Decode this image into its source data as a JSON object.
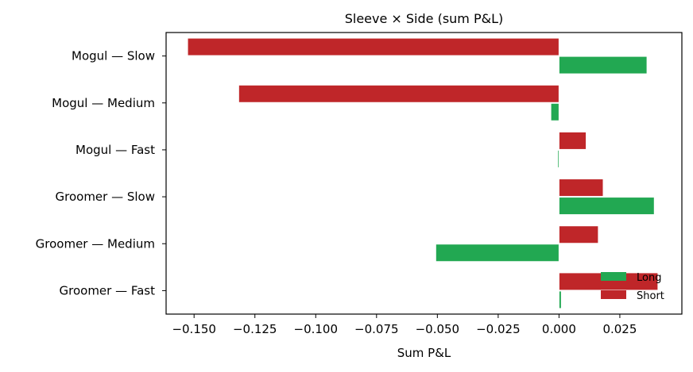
{
  "chart_data": {
    "type": "bar",
    "orientation": "horizontal",
    "title": "Sleeve × Side (sum P&L)",
    "xlabel": "Sum P&L",
    "ylabel": "",
    "categories": [
      "Mogul — Slow",
      "Mogul — Medium",
      "Mogul — Fast",
      "Groomer — Slow",
      "Groomer — Medium",
      "Groomer — Fast"
    ],
    "series": [
      {
        "name": "Long",
        "color": "#22a852",
        "values": [
          0.036,
          -0.0032,
          -0.0004,
          0.039,
          -0.0505,
          0.0008
        ]
      },
      {
        "name": "Short",
        "color": "#bf2629",
        "values": [
          -0.1525,
          -0.1315,
          0.011,
          0.018,
          0.016,
          0.0405
        ]
      }
    ],
    "xlim": [
      -0.1615,
      0.0505
    ],
    "xticks": [
      "−0.150",
      "−0.125",
      "−0.100",
      "−0.075",
      "−0.050",
      "−0.025",
      "0.000",
      "0.025"
    ],
    "xtick_values": [
      -0.15,
      -0.125,
      -0.1,
      -0.075,
      -0.05,
      -0.025,
      0.0,
      0.025
    ],
    "legend_position": "lower-right",
    "grid": false
  }
}
